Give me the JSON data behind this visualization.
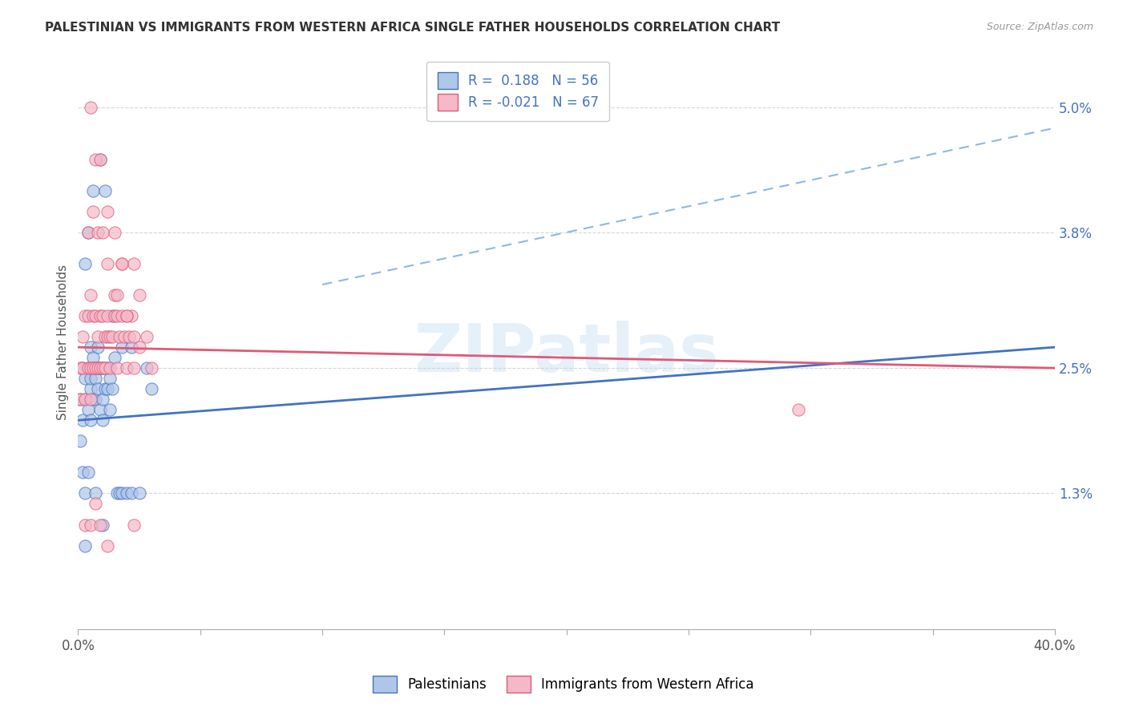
{
  "title": "PALESTINIAN VS IMMIGRANTS FROM WESTERN AFRICA SINGLE FATHER HOUSEHOLDS CORRELATION CHART",
  "source": "Source: ZipAtlas.com",
  "ylabel": "Single Father Households",
  "xlim": [
    0.0,
    0.4
  ],
  "ylim": [
    0.0,
    0.055
  ],
  "yticks": [
    0.013,
    0.025,
    0.038,
    0.05
  ],
  "ytick_labels": [
    "1.3%",
    "2.5%",
    "3.8%",
    "5.0%"
  ],
  "xticks": [
    0.0,
    0.05,
    0.1,
    0.15,
    0.2,
    0.25,
    0.3,
    0.35,
    0.4
  ],
  "xtick_labels_show": [
    "0.0%",
    "",
    "",
    "",
    "",
    "",
    "",
    "",
    "40.0%"
  ],
  "r_palestinian": 0.188,
  "n_palestinian": 56,
  "r_western_africa": -0.021,
  "n_western_africa": 67,
  "legend_label_1": "Palestinians",
  "legend_label_2": "Immigrants from Western Africa",
  "color_palestinian": "#aec6e8",
  "color_western_africa": "#f5b8c8",
  "line_color_palestinian": "#4472c4",
  "line_color_western_africa": "#e05878",
  "dashed_line_color": "#90b8e0",
  "background_color": "#ffffff",
  "pal_line_x0": 0.0,
  "pal_line_y0": 0.02,
  "pal_line_x1": 0.4,
  "pal_line_y1": 0.027,
  "waf_line_x0": 0.0,
  "waf_line_y0": 0.027,
  "waf_line_x1": 0.4,
  "waf_line_y1": 0.025,
  "dash_line_x0": 0.1,
  "dash_line_y0": 0.033,
  "dash_line_x1": 0.4,
  "dash_line_y1": 0.048,
  "palestinians_x": [
    0.001,
    0.001,
    0.002,
    0.002,
    0.002,
    0.003,
    0.003,
    0.003,
    0.004,
    0.004,
    0.004,
    0.005,
    0.005,
    0.005,
    0.005,
    0.006,
    0.006,
    0.006,
    0.007,
    0.007,
    0.007,
    0.008,
    0.008,
    0.008,
    0.009,
    0.009,
    0.01,
    0.01,
    0.01,
    0.011,
    0.011,
    0.012,
    0.012,
    0.013,
    0.013,
    0.014,
    0.015,
    0.016,
    0.017,
    0.018,
    0.02,
    0.022,
    0.025,
    0.028,
    0.03,
    0.003,
    0.004,
    0.006,
    0.009,
    0.011,
    0.014,
    0.018,
    0.022,
    0.003,
    0.007,
    0.01
  ],
  "palestinians_y": [
    0.018,
    0.022,
    0.02,
    0.025,
    0.015,
    0.013,
    0.024,
    0.022,
    0.025,
    0.021,
    0.015,
    0.023,
    0.027,
    0.02,
    0.024,
    0.026,
    0.025,
    0.022,
    0.024,
    0.025,
    0.022,
    0.025,
    0.023,
    0.027,
    0.025,
    0.021,
    0.025,
    0.022,
    0.02,
    0.025,
    0.023,
    0.025,
    0.023,
    0.021,
    0.024,
    0.023,
    0.026,
    0.013,
    0.013,
    0.013,
    0.013,
    0.013,
    0.013,
    0.025,
    0.023,
    0.035,
    0.038,
    0.042,
    0.045,
    0.042,
    0.03,
    0.027,
    0.027,
    0.008,
    0.013,
    0.01
  ],
  "western_africa_x": [
    0.001,
    0.001,
    0.002,
    0.002,
    0.003,
    0.003,
    0.004,
    0.004,
    0.005,
    0.005,
    0.005,
    0.006,
    0.006,
    0.007,
    0.007,
    0.008,
    0.008,
    0.009,
    0.009,
    0.01,
    0.01,
    0.011,
    0.011,
    0.012,
    0.012,
    0.013,
    0.013,
    0.014,
    0.015,
    0.016,
    0.016,
    0.017,
    0.018,
    0.019,
    0.02,
    0.021,
    0.022,
    0.023,
    0.023,
    0.025,
    0.028,
    0.03,
    0.004,
    0.006,
    0.008,
    0.01,
    0.012,
    0.015,
    0.018,
    0.02,
    0.005,
    0.007,
    0.009,
    0.012,
    0.015,
    0.018,
    0.023,
    0.025,
    0.016,
    0.02,
    0.003,
    0.005,
    0.007,
    0.009,
    0.012,
    0.023,
    0.295
  ],
  "western_africa_y": [
    0.025,
    0.022,
    0.028,
    0.025,
    0.03,
    0.022,
    0.03,
    0.025,
    0.032,
    0.025,
    0.022,
    0.03,
    0.025,
    0.03,
    0.025,
    0.028,
    0.025,
    0.03,
    0.025,
    0.03,
    0.025,
    0.028,
    0.025,
    0.03,
    0.028,
    0.028,
    0.025,
    0.028,
    0.03,
    0.03,
    0.025,
    0.028,
    0.03,
    0.028,
    0.025,
    0.028,
    0.03,
    0.028,
    0.025,
    0.027,
    0.028,
    0.025,
    0.038,
    0.04,
    0.038,
    0.038,
    0.035,
    0.032,
    0.035,
    0.03,
    0.05,
    0.045,
    0.045,
    0.04,
    0.038,
    0.035,
    0.035,
    0.032,
    0.032,
    0.03,
    0.01,
    0.01,
    0.012,
    0.01,
    0.008,
    0.01,
    0.021
  ]
}
